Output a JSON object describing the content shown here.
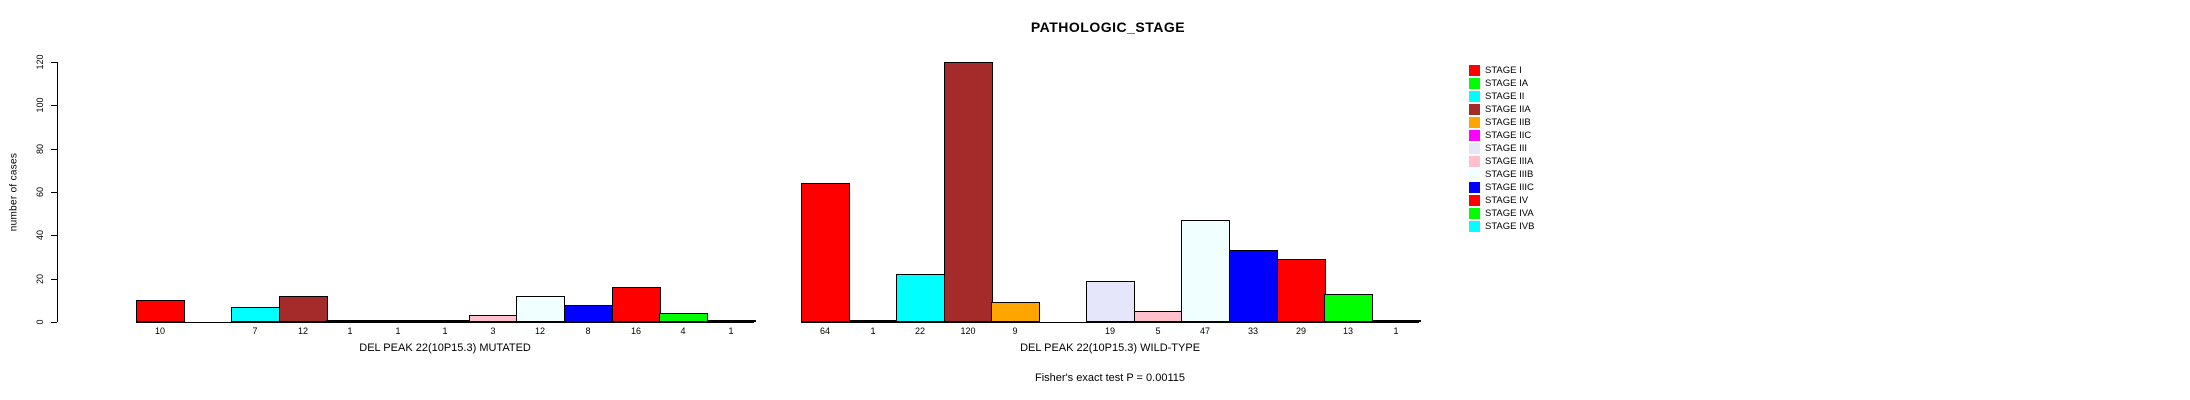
{
  "title": "PATHOLOGIC_STAGE",
  "footnote": "Fisher's exact test P = 0.00115",
  "y_axis": {
    "label": "number of cases",
    "ticks": [
      0,
      20,
      40,
      60,
      80,
      100,
      120
    ]
  },
  "legend": [
    {
      "label": "STAGE I",
      "color": "#FF0000"
    },
    {
      "label": "STAGE IA",
      "color": "#00FF00"
    },
    {
      "label": "STAGE II",
      "color": "#00FFFF"
    },
    {
      "label": "STAGE IIA",
      "color": "#A52A2A"
    },
    {
      "label": "STAGE IIB",
      "color": "#FFA500"
    },
    {
      "label": "STAGE IIC",
      "color": "#FF00FF"
    },
    {
      "label": "STAGE III",
      "color": "#E6E6FA"
    },
    {
      "label": "STAGE IIIA",
      "color": "#FFC0CB"
    },
    {
      "label": "STAGE IIIB",
      "color": "#F0FFFF"
    },
    {
      "label": "STAGE IIIC",
      "color": "#0000FF"
    },
    {
      "label": "STAGE IV",
      "color": "#FF0000"
    },
    {
      "label": "STAGE IVA",
      "color": "#00FF00"
    },
    {
      "label": "STAGE IVB",
      "color": "#00FFFF"
    }
  ],
  "groups": [
    {
      "label": "DEL PEAK 22(10P15.3) MUTATED",
      "values": [
        10,
        0,
        7,
        12,
        1,
        1,
        1,
        3,
        12,
        8,
        16,
        4,
        1
      ]
    },
    {
      "label": "DEL PEAK 22(10P15.3) WILD-TYPE",
      "values": [
        64,
        1,
        22,
        120,
        9,
        0,
        19,
        5,
        47,
        33,
        29,
        13,
        1
      ]
    }
  ],
  "chart_data": {
    "type": "bar",
    "title": "PATHOLOGIC_STAGE",
    "xlabel": "",
    "ylabel": "number of cases",
    "ylim": [
      0,
      120
    ],
    "yticks": [
      0,
      20,
      40,
      60,
      80,
      100,
      120
    ],
    "grid": false,
    "legend_position": "right",
    "bar_value_labels": true,
    "categories": [
      "STAGE I",
      "STAGE IA",
      "STAGE II",
      "STAGE IIA",
      "STAGE IIB",
      "STAGE IIC",
      "STAGE III",
      "STAGE IIIA",
      "STAGE IIIB",
      "STAGE IIIC",
      "STAGE IV",
      "STAGE IVA",
      "STAGE IVB"
    ],
    "colors": [
      "#FF0000",
      "#00FF00",
      "#00FFFF",
      "#A52A2A",
      "#FFA500",
      "#FF00FF",
      "#E6E6FA",
      "#FFC0CB",
      "#F0FFFF",
      "#0000FF",
      "#FF0000",
      "#00FF00",
      "#00FFFF"
    ],
    "series": [
      {
        "name": "DEL PEAK 22(10P15.3) MUTATED",
        "values": [
          10,
          0,
          7,
          12,
          1,
          1,
          1,
          3,
          12,
          8,
          16,
          4,
          1
        ]
      },
      {
        "name": "DEL PEAK 22(10P15.3) WILD-TYPE",
        "values": [
          64,
          1,
          22,
          120,
          9,
          0,
          19,
          5,
          47,
          33,
          29,
          13,
          1
        ]
      }
    ],
    "annotation": "Fisher's exact test P = 0.00115",
    "note": "Bars with value 0 are not drawn (empty slot, no label)"
  }
}
